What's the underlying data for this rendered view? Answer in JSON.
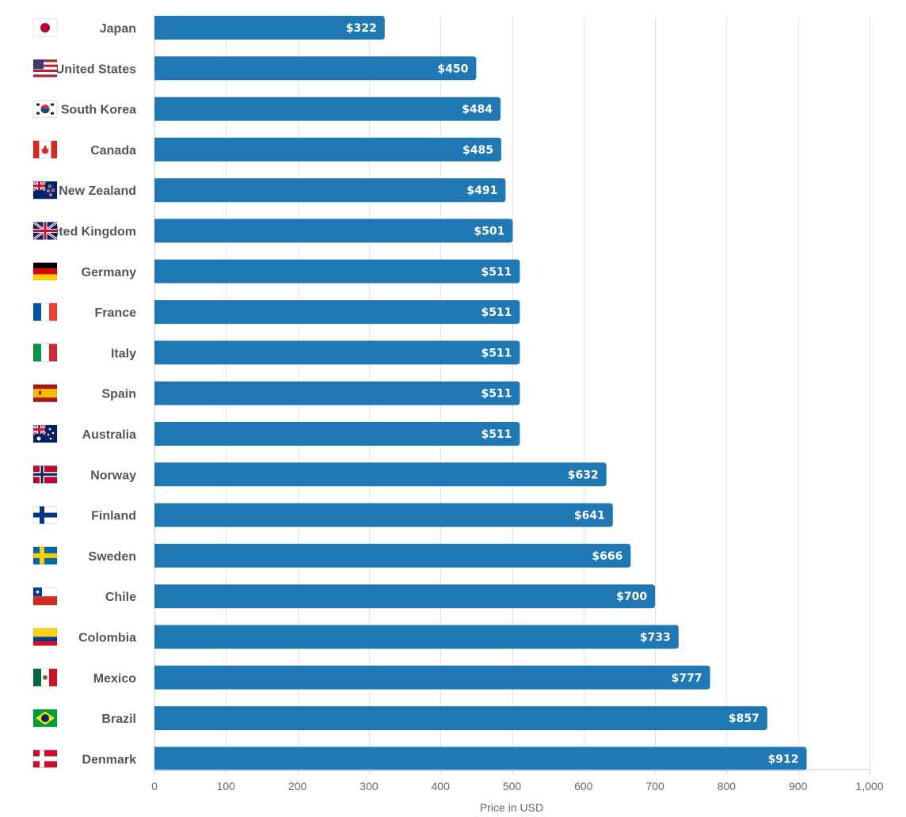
{
  "chart_data": {
    "type": "bar",
    "orientation": "horizontal",
    "categories": [
      "Japan",
      "United States",
      "South Korea",
      "Canada",
      "New Zealand",
      "United Kingdom",
      "Germany",
      "France",
      "Italy",
      "Spain",
      "Australia",
      "Norway",
      "Finland",
      "Sweden",
      "Chile",
      "Colombia",
      "Mexico",
      "Brazil",
      "Denmark"
    ],
    "category_flag_icons": [
      "japan-flag-icon",
      "united-states-flag-icon",
      "south-korea-flag-icon",
      "canada-flag-icon",
      "new-zealand-flag-icon",
      "united-kingdom-flag-icon",
      "germany-flag-icon",
      "france-flag-icon",
      "italy-flag-icon",
      "spain-flag-icon",
      "australia-flag-icon",
      "norway-flag-icon",
      "finland-flag-icon",
      "sweden-flag-icon",
      "chile-flag-icon",
      "colombia-flag-icon",
      "mexico-flag-icon",
      "brazil-flag-icon",
      "denmark-flag-icon"
    ],
    "values": [
      322,
      450,
      484,
      485,
      491,
      501,
      511,
      511,
      511,
      511,
      511,
      632,
      641,
      666,
      700,
      733,
      777,
      857,
      912
    ],
    "value_labels": [
      "$322",
      "$450",
      "$484",
      "$485",
      "$491",
      "$501",
      "$511",
      "$511",
      "$511",
      "$511",
      "$511",
      "$632",
      "$641",
      "$666",
      "$700",
      "$733",
      "$777",
      "$857",
      "$912"
    ],
    "xlabel": "Price in USD",
    "xlim": [
      0,
      1000
    ],
    "x_ticks": [
      0,
      100,
      200,
      300,
      400,
      500,
      600,
      700,
      800,
      900,
      1000
    ],
    "x_tick_labels": [
      "0",
      "100",
      "200",
      "300",
      "400",
      "500",
      "600",
      "700",
      "800",
      "900",
      "1,000"
    ],
    "grid": true,
    "bar_color": "#1f77b4"
  }
}
